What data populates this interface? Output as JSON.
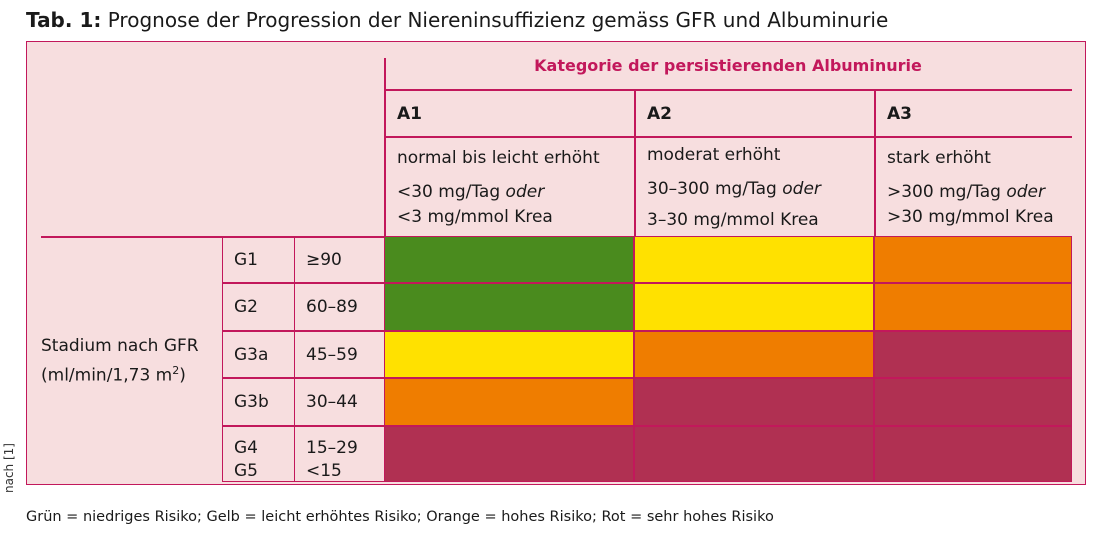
{
  "title": {
    "label": "Tab. 1:",
    "text": "Prognose der Progression der Niereninsuffizienz gemäss GFR und Albuminurie"
  },
  "header": {
    "category_title": "Kategorie der persistierenden Albuminurie",
    "columns": [
      {
        "code": "A1",
        "desc": "normal bis leicht erhöht",
        "range1_main": "<30 mg/Tag ",
        "range1_em": "oder",
        "range2": "<3 mg/mmol Krea"
      },
      {
        "code": "A2",
        "desc": "moderat erhöht",
        "range1_main": "30–300 mg/Tag ",
        "range1_em": "oder",
        "range2": "3–30 mg/mmol Krea"
      },
      {
        "code": "A3",
        "desc": "stark erhöht",
        "range1_main": ">300 mg/Tag ",
        "range1_em": "oder",
        "range2": ">30 mg/mmol Krea"
      }
    ]
  },
  "stage_label": {
    "line1": "Stadium nach GFR",
    "line2_main": "(ml/min/1,73 m",
    "line2_sup": "2",
    "line2_end": ")"
  },
  "rows": [
    {
      "stage": "G1",
      "gfr": "≥90"
    },
    {
      "stage": "G2",
      "gfr": "60–89"
    },
    {
      "stage": "G3a",
      "gfr": "45–59"
    },
    {
      "stage": "G3b",
      "gfr": "30–44"
    },
    {
      "stage": "G4",
      "gfr": "15–29",
      "stage2": "G5",
      "gfr2": "<15"
    }
  ],
  "risk_grid": [
    [
      "green",
      "yellow",
      "orange"
    ],
    [
      "green",
      "yellow",
      "orange"
    ],
    [
      "yellow",
      "orange",
      "red"
    ],
    [
      "orange",
      "red",
      "red"
    ],
    [
      "red",
      "red",
      "red"
    ]
  ],
  "colors": {
    "green": "#4a8b1e",
    "yellow": "#ffe100",
    "orange": "#ef7d00",
    "red": "#b03052",
    "accent": "#c2185b",
    "table_bg": "#f7dedf"
  },
  "legend": "Grün = niedriges Risiko; Gelb = leicht erhöhtes Risiko; Orange = hohes Risiko; Rot = sehr hohes Risiko",
  "source_note": "nach [1]"
}
